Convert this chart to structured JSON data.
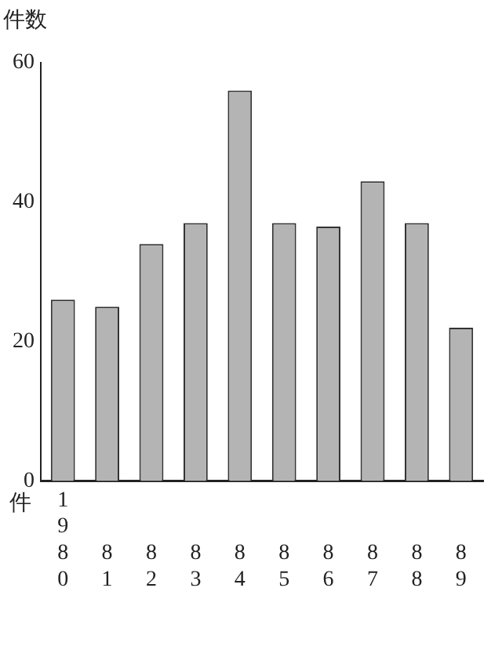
{
  "chart_data": {
    "type": "bar",
    "ylabel": "件数",
    "xlabel": "件",
    "categories": [
      "1980",
      "81",
      "82",
      "83",
      "84",
      "85",
      "86",
      "87",
      "88",
      "89"
    ],
    "values": [
      26,
      25,
      34,
      37,
      56,
      37,
      36.5,
      43,
      37,
      22
    ],
    "color": "#b4b4b4",
    "ylim": [
      0,
      60
    ],
    "yticks": [
      0,
      20,
      40,
      60
    ],
    "grid": false,
    "legend": false
  }
}
